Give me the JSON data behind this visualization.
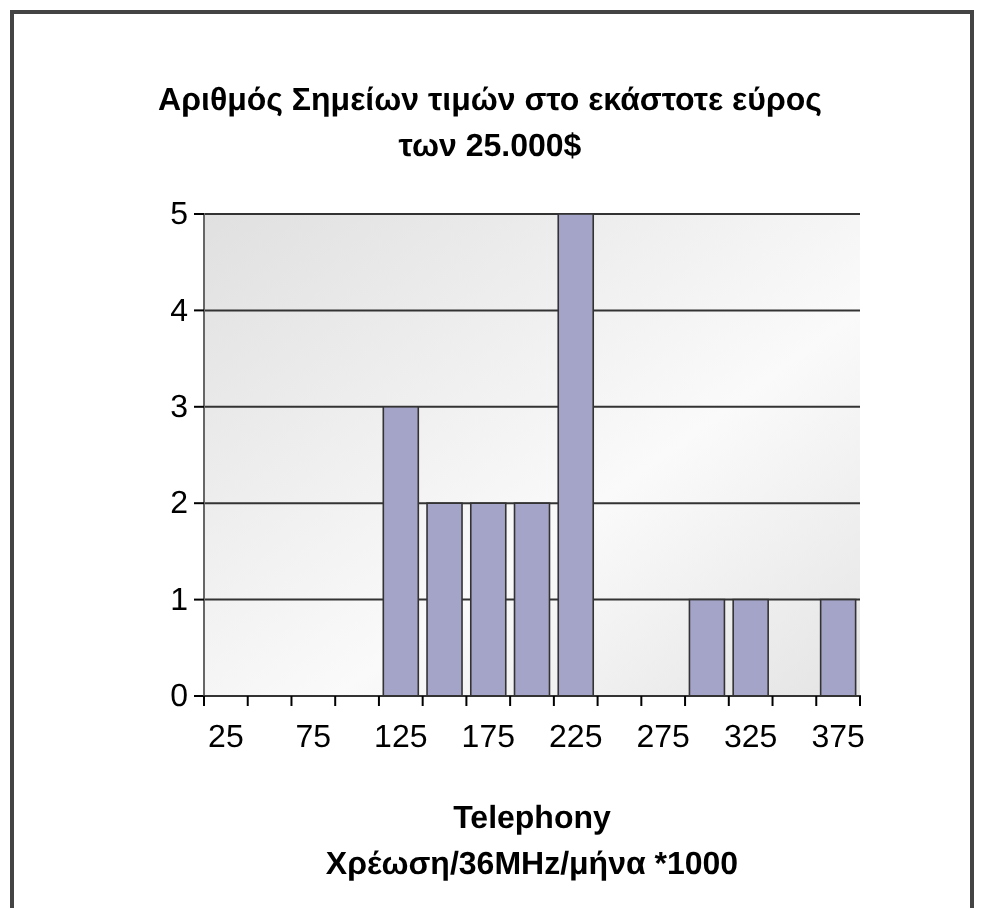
{
  "chart_data": {
    "type": "bar",
    "title": "Αριθμός Σημείων τιμών στο εκάστοτε εύρος των 25.000$",
    "xlabel": "Telephony\nΧρέωση/36MHz/μήνα *1000",
    "categories": [
      "25",
      null,
      "75",
      null,
      "125",
      null,
      "175",
      null,
      "225",
      null,
      "275",
      null,
      "325",
      null,
      "375"
    ],
    "values": [
      0,
      0,
      0,
      0,
      3,
      2,
      2,
      2,
      5,
      0,
      0,
      1,
      1,
      0,
      1
    ],
    "color": "#a4a4c8",
    "ylim": [
      0,
      5
    ],
    "yticks": [
      0,
      1,
      2,
      3,
      4,
      5
    ],
    "grid": "y"
  }
}
